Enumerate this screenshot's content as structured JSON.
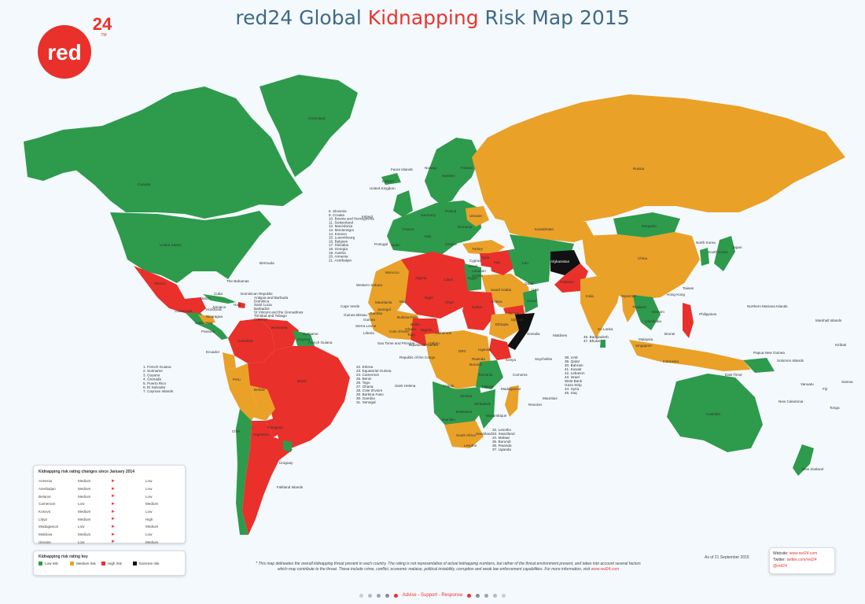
{
  "brand": {
    "logo_text": "red",
    "logo_sup": "24",
    "logo_tm": "TM"
  },
  "title": {
    "part1": "red24 Global ",
    "highlight": "Kidnapping",
    "part2": " Risk Map 2015"
  },
  "colors": {
    "low": "#2e9a4c",
    "medium": "#eaa128",
    "high": "#e9302a",
    "extreme": "#111111",
    "ocean": "#f4f9fd",
    "title": "#3f6a86"
  },
  "country_labels": [
    "Greenland",
    "Canada",
    "United States",
    "Russia",
    "Kazakhstan",
    "Mongolia",
    "China",
    "India",
    "Brazil",
    "Bolivia",
    "Peru",
    "Chile",
    "Argentina",
    "Colombia",
    "Venezuela",
    "Ecuador",
    "Mexico",
    "Algeria",
    "Libya",
    "Egypt",
    "Mali",
    "Niger",
    "Chad",
    "Sudan",
    "Nigeria",
    "DRC",
    "Angola",
    "Somalia",
    "Kenya",
    "Afghanistan",
    "Pakistan",
    "Iran",
    "Saudi Arabia",
    "Yemen",
    "Australia",
    "Indonesia",
    "Philippines",
    "Japan",
    "Madagascar",
    "Mauritania",
    "Morocco",
    "Ethiopia",
    "Tanzania",
    "Zambia",
    "Namibia",
    "South Africa",
    "Turkey",
    "Iraq",
    "Uruguay",
    "Paraguay",
    "Bermuda",
    "The Bahamas",
    "Western Sahara",
    "Cape Verde",
    "Faroe Islands",
    "Iceland",
    "United Kingdom",
    "Ireland",
    "Norway",
    "Sweden",
    "Finland",
    "Poland",
    "Germany",
    "France",
    "Spain",
    "Portugal",
    "Italy",
    "Ukraine",
    "Romania",
    "Greece",
    "Cyprus",
    "Lebanon",
    "Syria",
    "Jordan",
    "Israel",
    "Qatar",
    "UAE",
    "Oman",
    "Sri Lanka",
    "Maldives",
    "Thailand",
    "Vietnam",
    "Myanmar",
    "Cambodia",
    "Malaysia",
    "Singapore",
    "Brunei",
    "Hong Kong",
    "Taiwan",
    "South Korea",
    "North Korea",
    "Papua New Guinea",
    "Solomon Islands",
    "East Timor",
    "Vanuatu",
    "New Caledonia",
    "Fiji",
    "Samoa",
    "Tonga",
    "New Zealand",
    "Northern Mariana Islands",
    "Marshall Islands",
    "Kiribati",
    "Seychelles",
    "Comoros",
    "Mauritius",
    "Reunion",
    "Mozambique",
    "Zimbabwe",
    "Botswana",
    "Malawi",
    "Gabon",
    "Cameroon",
    "Ghana",
    "Guinea",
    "Sierra Leone",
    "Liberia",
    "Cote d'Ivoire",
    "Senegal",
    "Burkina Faso",
    "Benin",
    "Togo",
    "Gambia",
    "Guinea Bissau",
    "Eritrea",
    "Djibouti",
    "Uganda",
    "Rwanda",
    "Burundi",
    "Lesotho",
    "Swaziland",
    "Equatorial Guinea",
    "Sao Tome and Principe",
    "Republic of the Congo",
    "Saint Helena",
    "Falkland Islands",
    "Guatemala",
    "Honduras",
    "Nicaragua",
    "Costa Rica",
    "Panama",
    "Cuba",
    "Haiti",
    "Dominican Republic",
    "Belize",
    "Jamaica",
    "Guyana",
    "Suriname",
    "French Guiana"
  ],
  "europe_list": [
    "8. Slovenia",
    "9. Croatia",
    "10. Bosnia and Herzegovina",
    "11. Switzerland",
    "12. Macedonia",
    "13. Montenegro",
    "14. Kosovo",
    "15. Luxembourg",
    "16. Belgium",
    "17. Slovakia",
    "18. Georgia",
    "19. Austria",
    "20. Armenia",
    "21. Azerbaijan"
  ],
  "americas_list": [
    "1. French Guiana",
    "2. Suriname",
    "3. Guyana",
    "4. Grenada",
    "5. Puerto Rico",
    "6. El Salvador",
    "7. Cayman Islands"
  ],
  "africa_list": [
    "22. Eritrea",
    "23. Equatorial Guinea",
    "24. Cameroon",
    "25. Benin",
    "26. Togo",
    "27. Ghana",
    "28. Cote d'Ivoire",
    "29. Burkina Faso",
    "30. Gambia",
    "31. Senegal"
  ],
  "south_africa_list": [
    "32. Lesotho",
    "33. Swaziland",
    "34. Malawi",
    "35. Burundi",
    "36. Rwanda",
    "37. Uganda"
  ],
  "mideast_list": [
    "38. UAE",
    "39. Qatar",
    "40. Bahrain",
    "41. Kuwait",
    "42. Lebanon",
    "43. Israel",
    "West Bank",
    "Gaza Strip",
    "44. Syria",
    "45. Iraq"
  ],
  "asia_list": [
    "46. Bangladesh",
    "47. Bhutan"
  ],
  "caribbean_list": [
    "Antigua and Barbuda",
    "Dominica",
    "Saint Lucia",
    "Barbados",
    "St Vincent and the Grenadines",
    "Trinidad and Tobago",
    "Curacao"
  ],
  "changes": {
    "heading": "Kidnapping risk rating changes since January 2014",
    "rows": [
      {
        "country": "Armenia",
        "from": "Medium",
        "arrow": "►",
        "to": "Low"
      },
      {
        "country": "Azerbaijan",
        "from": "Medium",
        "arrow": "►",
        "to": "Low"
      },
      {
        "country": "Belarus",
        "from": "Medium",
        "arrow": "►",
        "to": "Low"
      },
      {
        "country": "Cameroon",
        "from": "Low",
        "arrow": "►",
        "to": "Medium"
      },
      {
        "country": "Kosovo",
        "from": "Medium",
        "arrow": "►",
        "to": "Low"
      },
      {
        "country": "Libya",
        "from": "Medium",
        "arrow": "►",
        "to": "High"
      },
      {
        "country": "Madagascar",
        "from": "Low",
        "arrow": "►",
        "to": "Medium"
      },
      {
        "country": "Moldova",
        "from": "Medium",
        "arrow": "►",
        "to": "Low"
      },
      {
        "country": "Ukraine",
        "from": "Low",
        "arrow": "►",
        "to": "Medium"
      }
    ]
  },
  "key": {
    "heading": "Kidnapping risk rating key",
    "items": [
      {
        "label": "Low risk",
        "color": "#2e9a4c"
      },
      {
        "label": "Medium risk",
        "color": "#eaa128"
      },
      {
        "label": "High risk",
        "color": "#e9302a"
      },
      {
        "label": "Extreme risk",
        "color": "#111111"
      }
    ]
  },
  "disclaimer": {
    "line1": "* This map delineates the overall kidnapping threat present in each country. The rating is not representative of actual kidnapping numbers, but rather of the threat environment present, and takes into account several factors",
    "line2": "which may contribute to the threat. These include crime, conflict, economic malaise, political instability, corruption and weak law enforcement capabilities. For more information, visit ",
    "url": "www.red24.com"
  },
  "as_of": "As of 21 September 2015",
  "contact": {
    "website_label": "Website:",
    "website": "www.red24.com",
    "twitter_label": "Twitter:",
    "twitter": "twitter.com/red24",
    "handle": "@red24"
  },
  "footer": {
    "text": "Advise - Support - Response"
  }
}
